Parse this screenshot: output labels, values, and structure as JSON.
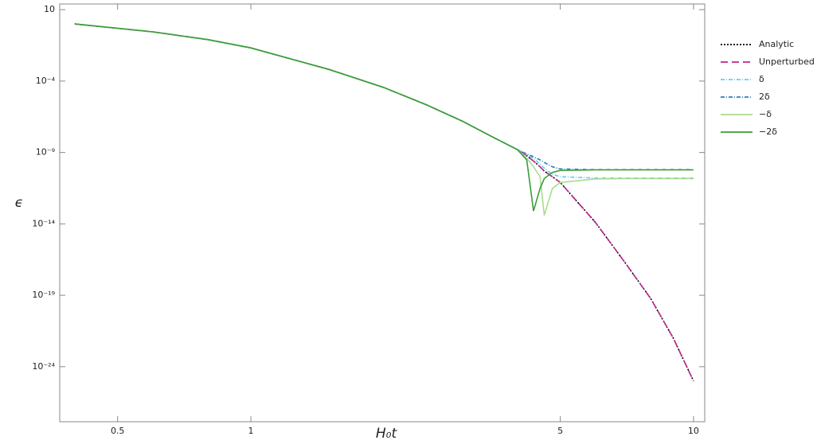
{
  "chart_data": {
    "type": "line",
    "x_label": "H₀t",
    "y_label": "ϵ",
    "log_x": true,
    "log_y": true,
    "xlim": [
      0.37,
      10.6
    ],
    "ylim": [
      1.4e-28,
      25
    ],
    "xticks": [
      0.5,
      1,
      5,
      10
    ],
    "yticks": [
      {
        "value": 10,
        "label": "10"
      },
      {
        "value": 0.0001,
        "label": "10⁻⁴"
      },
      {
        "value": 1e-09,
        "label": "10⁻⁹"
      },
      {
        "value": 1e-14,
        "label": "10⁻¹⁴"
      },
      {
        "value": 1e-19,
        "label": "10⁻¹⁹"
      },
      {
        "value": 1e-24,
        "label": "10⁻²⁴"
      }
    ],
    "legend": "right",
    "x": [
      0.4,
      0.6,
      0.8,
      1,
      1.5,
      2,
      2.5,
      3,
      3.5,
      4,
      4.2,
      4.35,
      4.5,
      4.6,
      4.8,
      5,
      6,
      7,
      8,
      9,
      10
    ],
    "series": [
      {
        "name": "Analytic",
        "color": "#000000",
        "dash": "2,2",
        "values": [
          1,
          0.28,
          0.08,
          0.021,
          0.00066,
          3.5e-05,
          2.1e-06,
          1.6e-07,
          1.3e-08,
          1.6e-09,
          6e-10,
          2.5e-10,
          1e-10,
          5e-11,
          2e-11,
          8e-12,
          1.3e-14,
          2e-17,
          6e-20,
          1e-22,
          1e-25
        ]
      },
      {
        "name": "Unperturbed",
        "color": "#c0248f",
        "dash": "9,5",
        "values": [
          1,
          0.28,
          0.08,
          0.021,
          0.00066,
          3.5e-05,
          2.1e-06,
          1.6e-07,
          1.3e-08,
          1.6e-09,
          6e-10,
          2.5e-10,
          1e-10,
          5e-11,
          2e-11,
          8e-12,
          1.3e-14,
          2e-17,
          6e-20,
          1e-22,
          1e-25
        ]
      },
      {
        "name": "δ",
        "color": "#6ec9ea",
        "dash": "5,2,1,2",
        "values": [
          1,
          0.28,
          0.08,
          0.021,
          0.00066,
          3.5e-05,
          2.1e-06,
          1.6e-07,
          1.3e-08,
          1.6e-09,
          7e-10,
          4e-10,
          1.5e-10,
          8e-11,
          3e-11,
          2e-11,
          1.6e-11,
          1.6e-11,
          1.6e-11,
          1.6e-11,
          1.6e-11
        ]
      },
      {
        "name": "2δ",
        "color": "#2a7fc0",
        "dash": "5,2,1,2",
        "values": [
          1,
          0.28,
          0.08,
          0.021,
          0.00066,
          3.5e-05,
          2.1e-06,
          1.6e-07,
          1.3e-08,
          1.6e-09,
          8e-10,
          5e-10,
          3e-10,
          2e-10,
          1e-10,
          7e-11,
          6.3e-11,
          6.3e-11,
          6.3e-11,
          6.3e-11,
          6.3e-11
        ]
      },
      {
        "name": "−δ",
        "color": "#a9dc8d",
        "dash": "",
        "values": [
          1,
          0.28,
          0.08,
          0.021,
          0.00066,
          3.5e-05,
          2.1e-06,
          1.6e-07,
          1.3e-08,
          1.6e-09,
          4e-10,
          1e-10,
          2e-11,
          4e-14,
          3e-12,
          8e-12,
          1.4e-11,
          1.5e-11,
          1.5e-11,
          1.5e-11,
          1.5e-11
        ]
      },
      {
        "name": "−2δ",
        "color": "#3a9e35",
        "dash": "",
        "values": [
          1,
          0.28,
          0.08,
          0.021,
          0.00066,
          3.5e-05,
          2.1e-06,
          1.6e-07,
          1.3e-08,
          1.6e-09,
          3e-10,
          8e-14,
          3e-12,
          1.5e-11,
          4e-11,
          5.5e-11,
          6e-11,
          6e-11,
          6e-11,
          6e-11,
          6e-11
        ]
      }
    ]
  }
}
